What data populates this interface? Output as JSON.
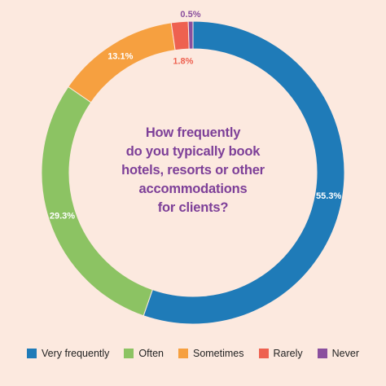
{
  "chart_data": {
    "type": "pie",
    "title": "How frequently do you typically book hotels, resorts or other accommodations for clients?",
    "title_lines": [
      "How frequently",
      "do you typically book",
      "hotels, resorts or other",
      "accommodations",
      "for clients?"
    ],
    "categories": [
      "Very frequently",
      "Often",
      "Sometimes",
      "Rarely",
      "Never"
    ],
    "values": [
      55.3,
      29.3,
      13.1,
      1.8,
      0.5
    ],
    "value_labels": [
      "55.3%",
      "29.3%",
      "13.1%",
      "1.8%",
      "0.5%"
    ],
    "colors": [
      "#1f7bb8",
      "#8cc363",
      "#f6a040",
      "#ee6150",
      "#8a4f9e"
    ],
    "label_colors": [
      "#ffffff",
      "#ffffff",
      "#ffffff",
      "#ee6150",
      "#8a4f9e"
    ],
    "donut": true,
    "legend_position": "bottom"
  }
}
